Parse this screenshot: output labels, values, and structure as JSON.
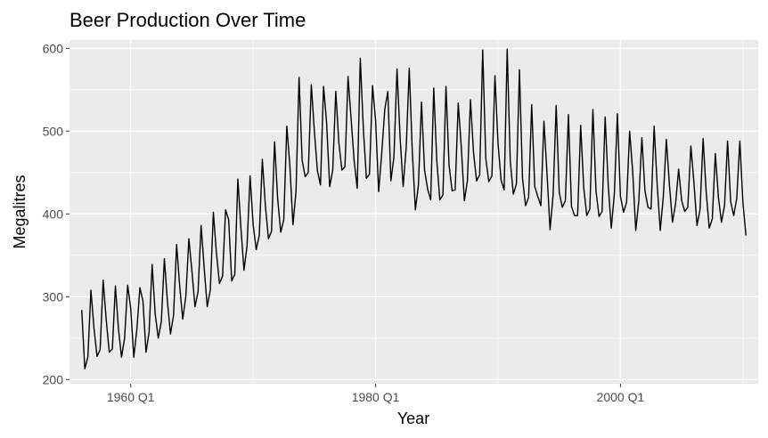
{
  "chart_data": {
    "type": "line",
    "title": "Beer Production Over Time",
    "xlabel": "Year",
    "ylabel": "Megalitres",
    "xlim": [
      "1955 Q1",
      "2011 Q2"
    ],
    "ylim": [
      195,
      610
    ],
    "x_ticks": [
      "1960 Q1",
      "1980 Q1",
      "2000 Q1"
    ],
    "y_ticks": [
      200,
      300,
      400,
      500,
      600
    ],
    "grid": true,
    "background": "#EBEBEB",
    "line_color": "#000000",
    "series": [
      {
        "start": "1956 Q1",
        "frequency": "quarterly",
        "values": [
          284,
          213,
          227,
          308,
          262,
          228,
          236,
          320,
          272,
          233,
          237,
          313,
          261,
          227,
          250,
          314,
          286,
          227,
          260,
          311,
          295,
          233,
          257,
          339,
          279,
          250,
          270,
          346,
          294,
          255,
          278,
          363,
          313,
          273,
          300,
          370,
          331,
          288,
          306,
          386,
          335,
          288,
          308,
          402,
          353,
          316,
          325,
          405,
          393,
          319,
          327,
          442,
          383,
          332,
          361,
          446,
          387,
          357,
          374,
          466,
          410,
          370,
          379,
          487,
          419,
          378,
          393,
          506,
          458,
          387,
          427,
          565,
          465,
          445,
          450,
          556,
          500,
          452,
          435,
          554,
          510,
          433,
          453,
          548,
          486,
          453,
          457,
          566,
          515,
          464,
          431,
          588,
          503,
          443,
          448,
          555,
          513,
          427,
          473,
          526,
          548,
          440,
          469,
          575,
          493,
          433,
          480,
          576,
          475,
          405,
          435,
          535,
          453,
          430,
          417,
          552,
          464,
          417,
          423,
          554,
          459,
          428,
          429,
          534,
          481,
          416,
          440,
          538,
          474,
          440,
          447,
          598,
          467,
          439,
          446,
          567,
          485,
          441,
          429,
          599,
          464,
          424,
          436,
          574,
          443,
          410,
          420,
          532,
          433,
          421,
          410,
          512,
          449,
          381,
          423,
          531,
          426,
          408,
          416,
          520,
          409,
          398,
          398,
          507,
          432,
          398,
          406,
          526,
          428,
          397,
          403,
          517,
          435,
          383,
          424,
          521,
          421,
          402,
          414,
          500,
          451,
          380,
          416,
          492,
          428,
          408,
          406,
          506,
          435,
          380,
          421,
          490,
          435,
          390,
          412,
          454,
          416,
          403,
          408,
          482,
          438,
          386,
          405,
          491,
          427,
          383,
          394,
          473,
          420,
          390,
          410,
          488,
          415,
          398,
          419,
          488,
          414,
          374
        ]
      }
    ]
  }
}
